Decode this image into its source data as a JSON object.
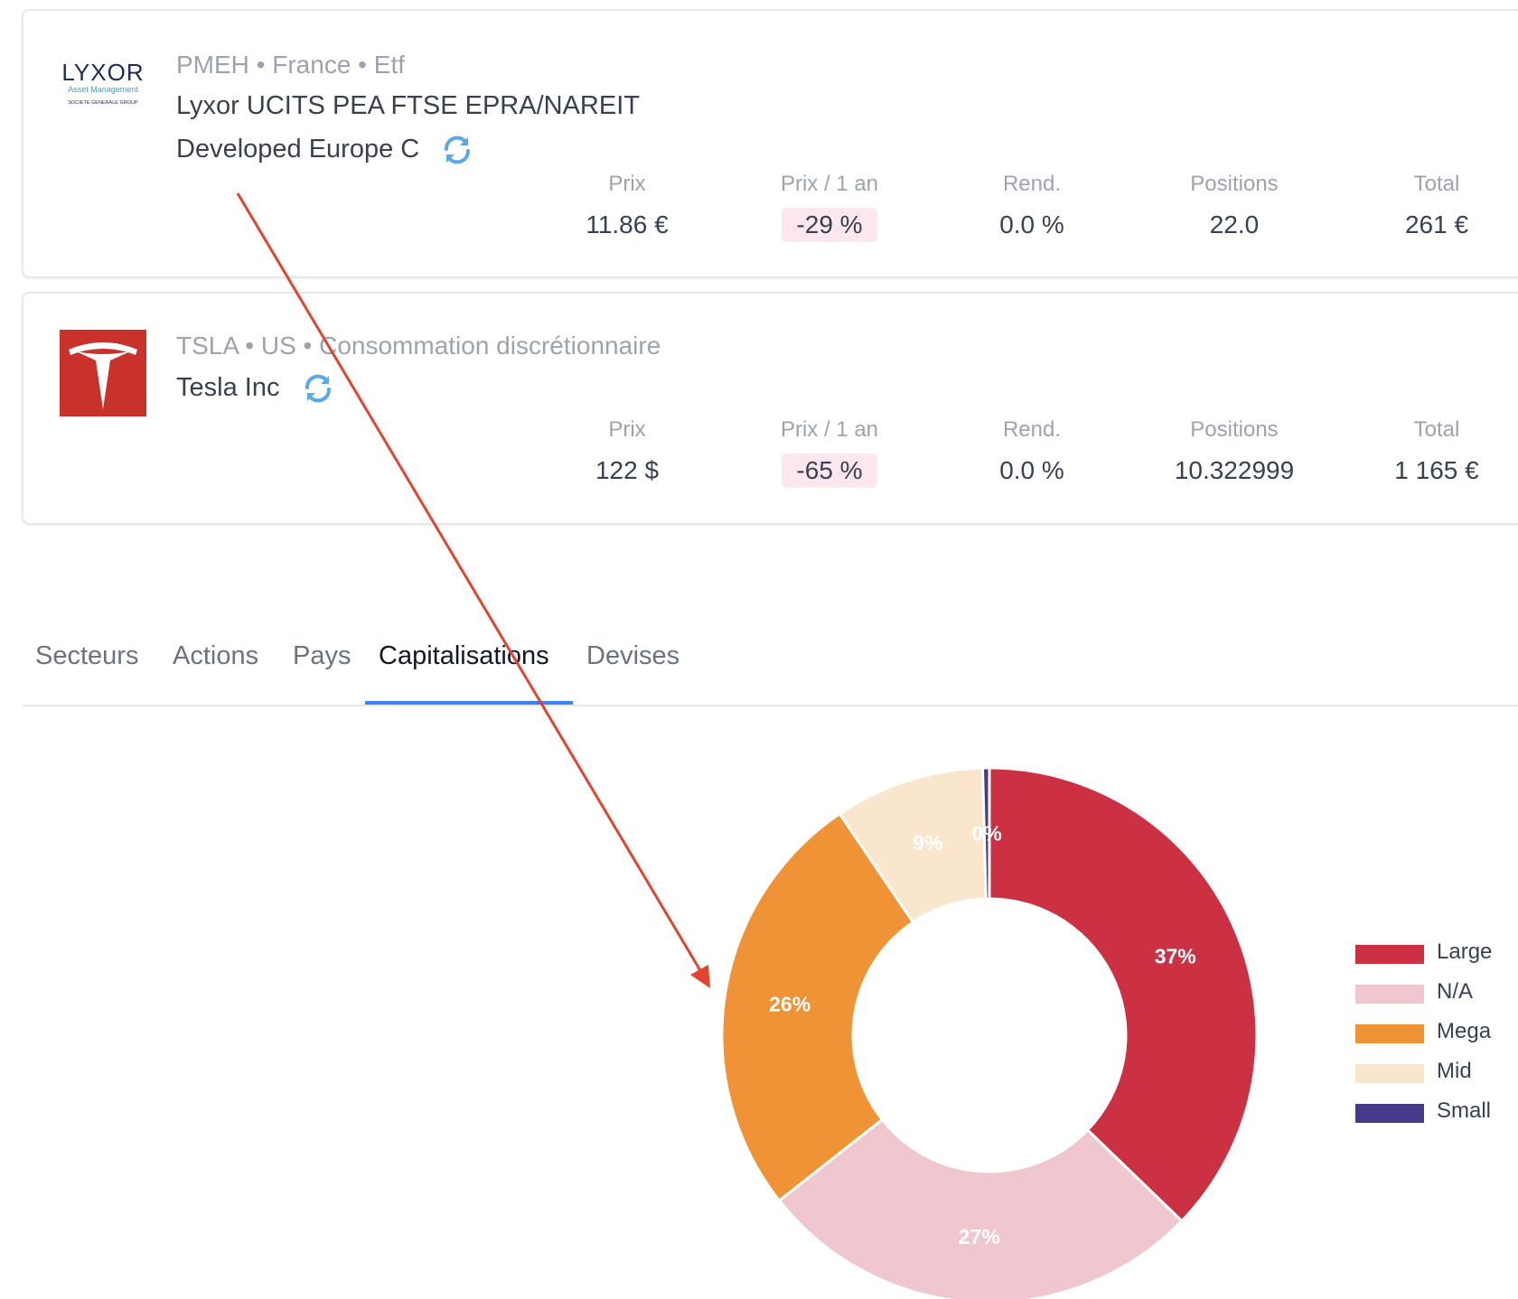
{
  "holdings": [
    {
      "meta": "PMEH • France • Etf",
      "name_line1": "Lyxor UCITS PEA FTSE EPRA/NAREIT",
      "name_line2": "Developed Europe C",
      "logo": {
        "brand": "LYXOR",
        "sub1": "Asset Management",
        "sub2": "SOCIETE GENERALE GROUP"
      },
      "stats": [
        {
          "label": "Prix",
          "value": "11.86 €"
        },
        {
          "label": "Prix / 1 an",
          "value": "-29 %"
        },
        {
          "label": "Rend.",
          "value": "0.0 %"
        },
        {
          "label": "Positions",
          "value": "22.0"
        },
        {
          "label": "Total",
          "value": "261 €"
        }
      ]
    },
    {
      "meta": "TSLA • US • Consommation discrétionnaire",
      "name_line1": "Tesla Inc",
      "stats": [
        {
          "label": "Prix",
          "value": "122 $"
        },
        {
          "label": "Prix / 1 an",
          "value": "-65 %"
        },
        {
          "label": "Rend.",
          "value": "0.0 %"
        },
        {
          "label": "Positions",
          "value": "10.322999"
        },
        {
          "label": "Total",
          "value": "1 165 €"
        }
      ]
    }
  ],
  "tabs": [
    "Secteurs",
    "Actions",
    "Pays",
    "Capitalisations",
    "Devises"
  ],
  "active_tab": "Capitalisations",
  "colors": {
    "accent": "#3b82f6",
    "negative_badge": "#fce7ef",
    "annotation_arrow": "#e2442f",
    "tesla_red": "#c8322a"
  },
  "icons": [
    "refresh-icon",
    "lyxor-logo",
    "tesla-logo"
  ],
  "chart_data": {
    "type": "pie",
    "donut": true,
    "legend_position": "right",
    "slices": [
      {
        "name": "Large",
        "value": 37,
        "label": "37%",
        "color": "#cc3043"
      },
      {
        "name": "N/A",
        "value": 27,
        "label": "27%",
        "color": "#f0c6cf"
      },
      {
        "name": "Mega",
        "value": 26,
        "label": "26%",
        "color": "#ef9336"
      },
      {
        "name": "Mid",
        "value": 9,
        "label": "9%",
        "color": "#fae6cd"
      },
      {
        "name": "Small",
        "value": 0.4,
        "label": "0%",
        "color": "#463a8a"
      }
    ]
  }
}
